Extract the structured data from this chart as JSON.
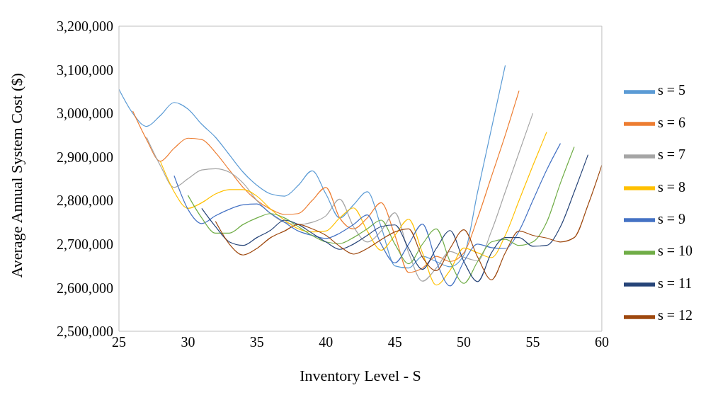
{
  "chart_data": {
    "type": "line",
    "xlabel": "Inventory Level - S",
    "ylabel": "Average Annual System Cost ($)",
    "x": [
      25,
      26,
      27,
      28,
      29,
      30,
      31,
      32,
      33,
      34,
      35,
      36,
      37,
      38,
      39,
      40,
      41,
      42,
      43,
      44,
      45,
      46,
      47,
      48,
      49,
      50,
      51,
      52,
      53,
      54,
      55,
      56,
      57,
      58,
      59,
      60
    ],
    "series": [
      {
        "name": "s = 5",
        "color": "#5b9bd5",
        "values": [
          3055000,
          3000000,
          2970000,
          2995000,
          3025000,
          3010000,
          2975000,
          2945000,
          2905000,
          2865000,
          2835000,
          2815000,
          2810000,
          2835000,
          2868000,
          2815000,
          2760000,
          2790000,
          2820000,
          2740000,
          2650000,
          2645000,
          2672000,
          2660000,
          2648000,
          2675000,
          2820000,
          2965000,
          3110000,
          null,
          null,
          null,
          null,
          null,
          null,
          null
        ]
      },
      {
        "name": "s = 6",
        "color": "#ed7d31",
        "values": [
          null,
          3005000,
          2940000,
          2890000,
          2920000,
          2943000,
          2940000,
          2910000,
          2870000,
          2830000,
          2800000,
          2780000,
          2768000,
          2770000,
          2800000,
          2830000,
          2760000,
          2735000,
          2760000,
          2795000,
          2720000,
          2635000,
          2645000,
          2672000,
          2660000,
          2680000,
          2760000,
          2855000,
          2950000,
          3052000,
          null,
          null,
          null,
          null,
          null,
          null
        ]
      },
      {
        "name": "s = 7",
        "color": "#a5a5a5",
        "values": [
          null,
          null,
          2945000,
          2880000,
          2830000,
          2850000,
          2870000,
          2873000,
          2865000,
          2840000,
          2800000,
          2770000,
          2750000,
          2745000,
          2750000,
          2765000,
          2803000,
          2740000,
          2705000,
          2730000,
          2772000,
          2680000,
          2615000,
          2645000,
          2683000,
          2670000,
          2662000,
          2730000,
          2820000,
          2910000,
          3000000,
          null,
          null,
          null,
          null,
          null
        ]
      },
      {
        "name": "s = 8",
        "color": "#ffc000",
        "values": [
          null,
          null,
          null,
          2890000,
          2820000,
          2782000,
          2795000,
          2815000,
          2825000,
          2825000,
          2810000,
          2780000,
          2755000,
          2735000,
          2728000,
          2730000,
          2760000,
          2783000,
          2730000,
          2686000,
          2720000,
          2757000,
          2680000,
          2606000,
          2640000,
          2691000,
          2680000,
          2669000,
          2720000,
          2800000,
          2880000,
          2957000,
          null,
          null,
          null,
          null
        ]
      },
      {
        "name": "s = 9",
        "color": "#4472c4",
        "values": [
          null,
          null,
          null,
          null,
          2857000,
          2780000,
          2747000,
          2765000,
          2780000,
          2790000,
          2792000,
          2770000,
          2750000,
          2730000,
          2720000,
          2713000,
          2725000,
          2745000,
          2767000,
          2700000,
          2657000,
          2700000,
          2746000,
          2660000,
          2604000,
          2660000,
          2700000,
          2692000,
          2690000,
          2730000,
          2800000,
          2870000,
          2931000,
          null,
          null,
          null
        ]
      },
      {
        "name": "s = 10",
        "color": "#70ad47",
        "values": [
          null,
          null,
          null,
          null,
          null,
          2812000,
          2760000,
          2725000,
          2725000,
          2745000,
          2760000,
          2770000,
          2760000,
          2740000,
          2720000,
          2705000,
          2701000,
          2715000,
          2735000,
          2755000,
          2700000,
          2655000,
          2700000,
          2735000,
          2660000,
          2610000,
          2660000,
          2705000,
          2711000,
          2697000,
          2705000,
          2750000,
          2840000,
          2923000,
          null,
          null
        ]
      },
      {
        "name": "s = 11",
        "color": "#264478",
        "values": [
          null,
          null,
          null,
          null,
          null,
          null,
          2782000,
          2740000,
          2705000,
          2697000,
          2715000,
          2732000,
          2755000,
          2745000,
          2725000,
          2705000,
          2688000,
          2700000,
          2720000,
          2740000,
          2744000,
          2690000,
          2642000,
          2690000,
          2731000,
          2660000,
          2614000,
          2680000,
          2715000,
          2715000,
          2695000,
          2697000,
          2740000,
          2820000,
          2905000,
          null
        ]
      },
      {
        "name": "s = 12",
        "color": "#9e480e",
        "values": [
          null,
          null,
          null,
          null,
          null,
          null,
          null,
          2752000,
          2700000,
          2675000,
          2690000,
          2715000,
          2730000,
          2745000,
          2735000,
          2720000,
          2695000,
          2677000,
          2690000,
          2710000,
          2728000,
          2735000,
          2670000,
          2639000,
          2690000,
          2733000,
          2670000,
          2618000,
          2680000,
          2730000,
          2720000,
          2714000,
          2705000,
          2715000,
          2790000,
          2881000
        ]
      }
    ],
    "xlim": [
      25,
      60
    ],
    "xticks": [
      25,
      30,
      35,
      40,
      45,
      50,
      55,
      60
    ],
    "ylim": [
      2500000,
      3200000
    ],
    "yticks": [
      {
        "value": 2500000,
        "label": "2,500,000"
      },
      {
        "value": 2600000,
        "label": "2,600,000"
      },
      {
        "value": 2700000,
        "label": "2,700,000"
      },
      {
        "value": 2800000,
        "label": "2,800,000"
      },
      {
        "value": 2900000,
        "label": "2,900,000"
      },
      {
        "value": 3000000,
        "label": "3,000,000"
      },
      {
        "value": 3100000,
        "label": "3,100,000"
      },
      {
        "value": 3200000,
        "label": "3,200,000"
      }
    ],
    "grid": false,
    "legend": "right",
    "marker": "none",
    "line_style": "solid"
  }
}
